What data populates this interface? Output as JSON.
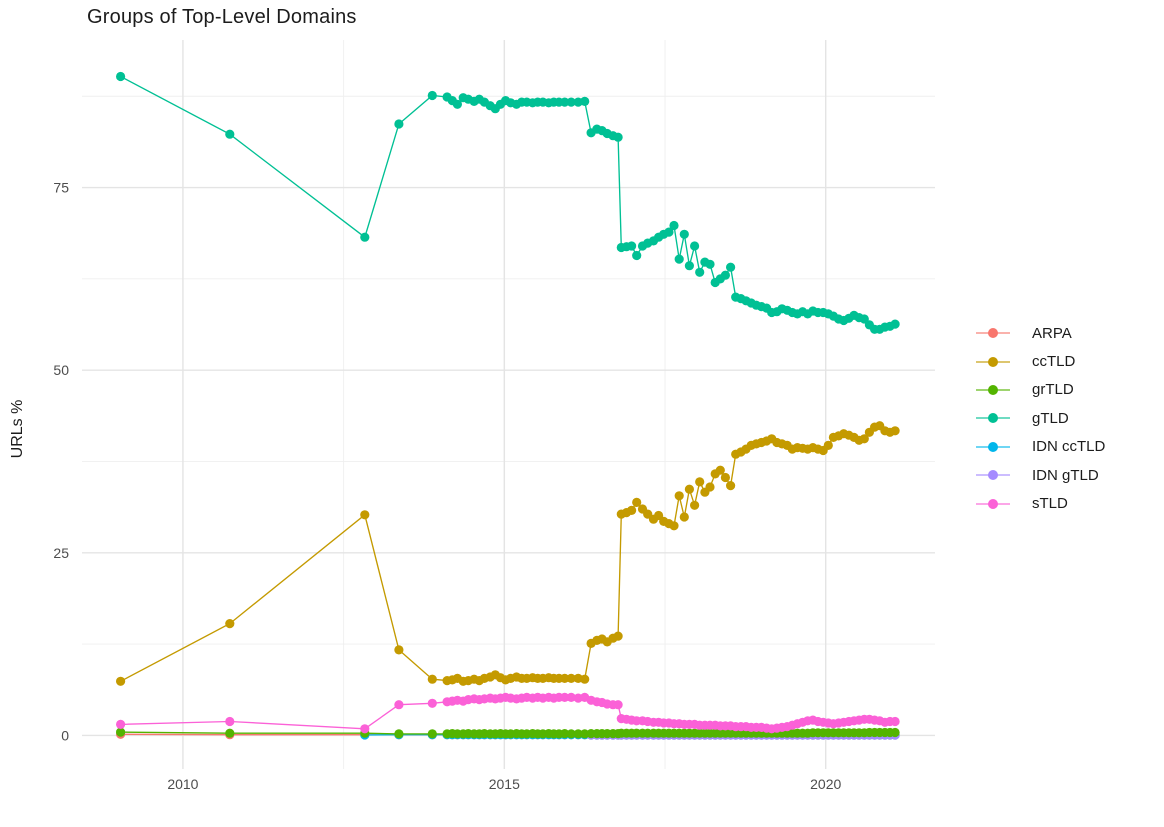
{
  "chart": {
    "title": "Groups of Top-Level Domains",
    "ylabel": "URLs %",
    "chart_data": {
      "type": "line",
      "title": "Groups of Top-Level Domains",
      "xlabel": "",
      "ylabel": "URLs %",
      "legend_position": "right",
      "grid": true,
      "x_ticks": [
        "2010",
        "2015",
        "2020"
      ],
      "y_ticks": [
        "0",
        "25",
        "50",
        "75"
      ],
      "xlim": [
        2008.43,
        2021.7
      ],
      "ylim": [
        -4.6,
        95.2
      ]
    },
    "axes": {
      "x": {
        "domain": [
          2008.43,
          2021.7
        ],
        "major": [
          2010,
          2015,
          2020
        ],
        "minor": [
          2012.5,
          2017.5
        ],
        "labels": [
          "2010",
          "2015",
          "2020"
        ]
      },
      "y": {
        "domain": [
          -4.6,
          95.2
        ],
        "major": [
          0,
          25,
          50,
          75
        ],
        "minor": [
          12.5,
          37.5,
          62.5,
          87.5
        ],
        "labels": [
          "0",
          "25",
          "50",
          "75"
        ]
      }
    },
    "grid_major_color": "#e4e4e4",
    "grid_minor_color": "#efefef",
    "tick_color": "#4d4d4d",
    "x": [
      2009.03,
      2010.73,
      2012.83,
      2013.36,
      2013.88,
      2014.11,
      2014.19,
      2014.27,
      2014.36,
      2014.44,
      2014.53,
      2014.61,
      2014.69,
      2014.78,
      2014.86,
      2014.94,
      2015.02,
      2015.1,
      2015.19,
      2015.27,
      2015.35,
      2015.44,
      2015.52,
      2015.6,
      2015.69,
      2015.77,
      2015.85,
      2015.94,
      2016.04,
      2016.15,
      2016.25,
      2016.35,
      2016.44,
      2016.52,
      2016.6,
      2016.69,
      2016.77,
      2016.82,
      2016.9,
      2016.98,
      2017.06,
      2017.15,
      2017.23,
      2017.32,
      2017.4,
      2017.48,
      2017.56,
      2017.64,
      2017.72,
      2017.8,
      2017.88,
      2017.96,
      2018.04,
      2018.12,
      2018.2,
      2018.28,
      2018.36,
      2018.44,
      2018.52,
      2018.6,
      2018.68,
      2018.76,
      2018.84,
      2018.92,
      2019.0,
      2019.08,
      2019.16,
      2019.24,
      2019.32,
      2019.4,
      2019.48,
      2019.56,
      2019.64,
      2019.72,
      2019.8,
      2019.88,
      2019.96,
      2020.04,
      2020.12,
      2020.2,
      2020.28,
      2020.36,
      2020.44,
      2020.52,
      2020.6,
      2020.68,
      2020.76,
      2020.84,
      2020.92,
      2021.0,
      2021.08
    ],
    "series": [
      {
        "name": "ARPA",
        "color": "#F8766D",
        "z": 0,
        "values": [
          0.15,
          0.1,
          0.1,
          0.08,
          0.08,
          0.08,
          0.08,
          0.08,
          0.08,
          0.08,
          0.08,
          0.08,
          0.08,
          0.08,
          0.08,
          0.08,
          0.08,
          0.08,
          0.08,
          0.08,
          0.08,
          0.08,
          0.08,
          0.08,
          0.08,
          0.08,
          0.08,
          0.08,
          0.08,
          0.08,
          0.08,
          0.05,
          0.05,
          0.05,
          0.05,
          0.05,
          0.05,
          0.05,
          0.05,
          0.05,
          0.05,
          0.05,
          0.05,
          0.05,
          0.05,
          0.05,
          0.05,
          0.05,
          0.05,
          0.05,
          0.05,
          0.05,
          0.05,
          0.05,
          0.05,
          0.05,
          0.05,
          0.05,
          0.05,
          0.05,
          0.05,
          0.05,
          0.05,
          0.05,
          0.05,
          0.05,
          0.05,
          0.05,
          0.05,
          0.05,
          0.05,
          0.05,
          0.05,
          0.05,
          0.05,
          0.05,
          0.05,
          0.05,
          0.05,
          0.05,
          0.05,
          0.05,
          0.05,
          0.05,
          0.05,
          0.05,
          0.05,
          0.05,
          0.05,
          0.05,
          0.05
        ]
      },
      {
        "name": "ccTLD",
        "color": "#C49A00",
        "z": 4,
        "values": [
          7.4,
          15.3,
          30.2,
          11.7,
          7.7,
          7.5,
          7.6,
          7.8,
          7.4,
          7.5,
          7.7,
          7.5,
          7.8,
          8.0,
          8.3,
          7.9,
          7.6,
          7.8,
          8.0,
          7.8,
          7.8,
          7.9,
          7.8,
          7.8,
          7.9,
          7.8,
          7.8,
          7.8,
          7.8,
          7.8,
          7.7,
          12.6,
          13.0,
          13.2,
          12.8,
          13.3,
          13.6,
          30.3,
          30.5,
          30.8,
          31.9,
          31.0,
          30.3,
          29.6,
          30.1,
          29.3,
          29.0,
          28.7,
          32.8,
          29.9,
          33.7,
          31.5,
          34.7,
          33.3,
          34.0,
          35.8,
          36.3,
          35.3,
          34.2,
          38.5,
          38.8,
          39.2,
          39.7,
          39.9,
          40.1,
          40.3,
          40.6,
          40.1,
          39.9,
          39.7,
          39.2,
          39.4,
          39.3,
          39.2,
          39.4,
          39.2,
          39.0,
          39.7,
          40.8,
          41.0,
          41.3,
          41.1,
          40.8,
          40.4,
          40.6,
          41.5,
          42.2,
          42.4,
          41.7,
          41.5,
          41.7
        ]
      },
      {
        "name": "grTLD",
        "color": "#53B400",
        "z": 3,
        "values": [
          0.45,
          0.3,
          0.3,
          0.2,
          0.2,
          0.2,
          0.25,
          0.2,
          0.2,
          0.25,
          0.2,
          0.2,
          0.25,
          0.2,
          0.2,
          0.25,
          0.2,
          0.2,
          0.25,
          0.2,
          0.2,
          0.25,
          0.2,
          0.2,
          0.25,
          0.2,
          0.2,
          0.25,
          0.2,
          0.2,
          0.2,
          0.25,
          0.25,
          0.25,
          0.25,
          0.25,
          0.25,
          0.3,
          0.3,
          0.3,
          0.3,
          0.3,
          0.3,
          0.3,
          0.3,
          0.3,
          0.3,
          0.3,
          0.3,
          0.3,
          0.3,
          0.3,
          0.3,
          0.3,
          0.3,
          0.3,
          0.3,
          0.3,
          0.3,
          0.3,
          0.3,
          0.3,
          0.3,
          0.3,
          0.3,
          0.3,
          0.3,
          0.3,
          0.3,
          0.3,
          0.3,
          0.3,
          0.3,
          0.3,
          0.35,
          0.35,
          0.35,
          0.35,
          0.35,
          0.35,
          0.35,
          0.35,
          0.35,
          0.35,
          0.35,
          0.4,
          0.4,
          0.4,
          0.4,
          0.4,
          0.4
        ]
      },
      {
        "name": "gTLD",
        "color": "#00C094",
        "z": 5,
        "values": [
          90.2,
          82.3,
          68.2,
          83.7,
          87.6,
          87.4,
          86.9,
          86.4,
          87.3,
          87.1,
          86.8,
          87.1,
          86.7,
          86.2,
          85.8,
          86.4,
          86.9,
          86.6,
          86.4,
          86.7,
          86.7,
          86.6,
          86.7,
          86.7,
          86.6,
          86.7,
          86.7,
          86.7,
          86.7,
          86.7,
          86.8,
          82.5,
          83.0,
          82.8,
          82.4,
          82.1,
          81.9,
          66.8,
          66.9,
          67.0,
          65.7,
          67.0,
          67.4,
          67.7,
          68.2,
          68.6,
          68.9,
          69.8,
          65.2,
          68.6,
          64.3,
          67.0,
          63.4,
          64.8,
          64.5,
          62.0,
          62.5,
          63.0,
          64.1,
          60.0,
          59.8,
          59.5,
          59.2,
          58.9,
          58.7,
          58.5,
          57.9,
          58.0,
          58.4,
          58.2,
          57.9,
          57.7,
          58.0,
          57.7,
          58.1,
          57.9,
          57.9,
          57.7,
          57.4,
          57.0,
          56.8,
          57.1,
          57.5,
          57.2,
          57.0,
          56.2,
          55.6,
          55.6,
          55.9,
          56.0,
          56.3
        ]
      },
      {
        "name": "IDN ccTLD",
        "color": "#00B6EB",
        "z": 1,
        "values": [
          null,
          null,
          0.05,
          0.1,
          0.1,
          0.1,
          0.1,
          0.1,
          0.1,
          0.1,
          0.1,
          0.1,
          0.1,
          0.1,
          0.1,
          0.1,
          0.1,
          0.1,
          0.1,
          0.1,
          0.1,
          0.1,
          0.1,
          0.1,
          0.1,
          0.1,
          0.1,
          0.1,
          0.1,
          0.1,
          0.1,
          0.05,
          0.05,
          0.05,
          0.05,
          0.05,
          0.05,
          0.05,
          0.05,
          0.05,
          0.05,
          0.05,
          0.05,
          0.05,
          0.05,
          0.05,
          0.05,
          0.05,
          0.05,
          0.05,
          0.05,
          0.05,
          0.05,
          0.05,
          0.05,
          0.05,
          0.05,
          0.05,
          0.05,
          0.05,
          0.05,
          0.05,
          0.05,
          0.05,
          0.05,
          0.05,
          0.05,
          0.05,
          0.05,
          0.05,
          0.05,
          0.05,
          0.05,
          0.05,
          0.05,
          0.05,
          0.05,
          0.05,
          0.05,
          0.05,
          0.05,
          0.05,
          0.05,
          0.05,
          0.05,
          0.05,
          0.05,
          0.05,
          0.05,
          0.05,
          0.05
        ]
      },
      {
        "name": "IDN gTLD",
        "color": "#A58AFF",
        "z": 2,
        "values": [
          null,
          null,
          null,
          null,
          null,
          null,
          null,
          null,
          null,
          null,
          null,
          null,
          null,
          null,
          null,
          null,
          null,
          null,
          null,
          null,
          null,
          null,
          null,
          null,
          null,
          null,
          null,
          null,
          null,
          null,
          null,
          0.05,
          0.05,
          0.05,
          0.05,
          0.05,
          0.05,
          0.05,
          0.05,
          0.05,
          0.05,
          0.05,
          0.05,
          0.05,
          0.05,
          0.05,
          0.05,
          0.05,
          0.05,
          0.05,
          0.05,
          0.05,
          0.05,
          0.05,
          0.05,
          0.05,
          0.05,
          0.05,
          0.05,
          0.05,
          0.05,
          0.05,
          0.05,
          0.05,
          0.05,
          0.05,
          0.05,
          0.05,
          0.05,
          0.05,
          0.05,
          0.05,
          0.05,
          0.05,
          0.05,
          0.05,
          0.05,
          0.05,
          0.05,
          0.05,
          0.05,
          0.05,
          0.05,
          0.05,
          0.05,
          0.05,
          0.05,
          0.05,
          0.05,
          0.05,
          0.05
        ]
      },
      {
        "name": "sTLD",
        "color": "#FB61D7",
        "z": 6,
        "values": [
          1.5,
          1.9,
          0.9,
          4.2,
          4.4,
          4.6,
          4.7,
          4.8,
          4.7,
          4.9,
          5.0,
          4.9,
          5.0,
          5.1,
          5.0,
          5.1,
          5.2,
          5.1,
          5.0,
          5.1,
          5.2,
          5.1,
          5.2,
          5.1,
          5.2,
          5.1,
          5.2,
          5.2,
          5.2,
          5.1,
          5.2,
          4.8,
          4.6,
          4.5,
          4.3,
          4.2,
          4.2,
          2.3,
          2.2,
          2.1,
          2.0,
          2.0,
          1.9,
          1.8,
          1.8,
          1.7,
          1.7,
          1.6,
          1.6,
          1.5,
          1.5,
          1.5,
          1.4,
          1.4,
          1.4,
          1.4,
          1.3,
          1.3,
          1.3,
          1.2,
          1.2,
          1.2,
          1.1,
          1.1,
          1.1,
          1.0,
          0.9,
          1.0,
          1.1,
          1.2,
          1.4,
          1.6,
          1.8,
          2.0,
          2.1,
          1.9,
          1.8,
          1.7,
          1.6,
          1.7,
          1.8,
          1.9,
          2.0,
          2.1,
          2.2,
          2.2,
          2.1,
          2.0,
          1.8,
          1.9,
          1.9
        ]
      }
    ]
  }
}
